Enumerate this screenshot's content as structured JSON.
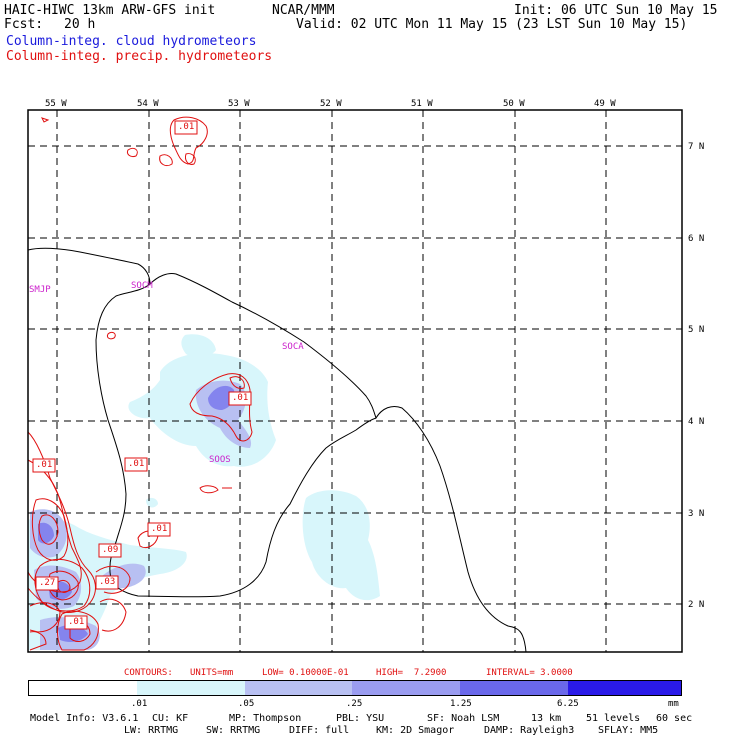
{
  "header": {
    "title_left": "HAIC-HIWC 13km ARW-GFS init",
    "org": "NCAR/MMM",
    "init": "Init: 06 UTC Sun 10 May 15",
    "fcst_label": "Fcst:",
    "fcst_value": "20 h",
    "valid": "Valid: 02 UTC Mon 11 May 15 (23 LST Sun 10 May 15)",
    "field1": "Column-integ. cloud hydrometeors",
    "field2": "Column-integ. precip. hydrometeors"
  },
  "map": {
    "lon_labels": [
      "55 W",
      "54 W",
      "53 W",
      "52 W",
      "51 W",
      "50 W",
      "49 W"
    ],
    "lat_labels": [
      "7 N",
      "6 N",
      "5 N",
      "4 N",
      "3 N",
      "2 N"
    ],
    "stations": [
      "SMJP",
      "SOCM",
      "SOCA",
      "SOOS"
    ],
    "contour_labels": [
      ".01",
      ".01",
      ".01",
      ".01",
      ".01",
      ".09",
      ".27",
      ".03",
      ".01"
    ]
  },
  "contours_text": {
    "contours": "CONTOURS:",
    "units": "UNITS=mm",
    "low": "LOW= 0.10000E-01",
    "high": "HIGH=  7.2900",
    "interval": "INTERVAL= 3.0000"
  },
  "colorbar": {
    "ticks": [
      ".01",
      ".05",
      ".25",
      "1.25",
      "6.25"
    ],
    "unit": "mm",
    "colors": [
      "#ffffff",
      "#d8f6fb",
      "#b8c0f2",
      "#9a9cf0",
      "#6a68ea",
      "#2a1ae8"
    ]
  },
  "model_info": {
    "line1": [
      "Model Info: V3.6.1",
      "CU: KF",
      "MP: Thompson",
      "PBL: YSU",
      "SF: Noah LSM",
      "13 km",
      "51 levels",
      "60 sec"
    ],
    "line2": [
      "LW: RRTMG",
      "SW: RRTMG",
      "DIFF: full",
      "KM: 2D Smagor",
      "DAMP: Rayleigh3",
      "SFLAY: MM5"
    ]
  }
}
